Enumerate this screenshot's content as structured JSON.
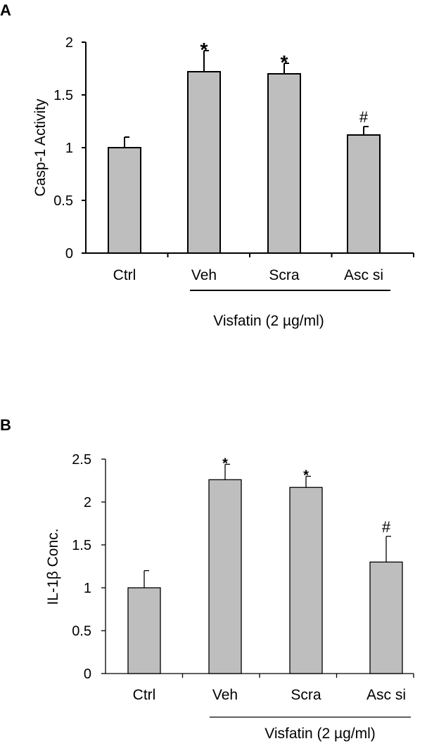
{
  "chart_data": [
    {
      "type": "bar",
      "panel_label": "A",
      "categories": [
        "Ctrl",
        "Veh",
        "Scra",
        "Asc si"
      ],
      "values": [
        1.0,
        1.72,
        1.7,
        1.12
      ],
      "errors": [
        0.1,
        0.2,
        0.1,
        0.08
      ],
      "annotations": [
        "",
        "*",
        "*",
        "#"
      ],
      "ylabel": "Casp-1 Activity",
      "xlabel": "",
      "ylim": [
        0,
        2
      ],
      "yticks": [
        0,
        0.5,
        1,
        1.5,
        2
      ],
      "ytick_labels": [
        "0",
        "0.5",
        "1",
        "1.5",
        "2"
      ],
      "group_label": "Visfatin (2 µg/ml)",
      "bar_color": "#bebebe",
      "grid": false
    },
    {
      "type": "bar",
      "panel_label": "B",
      "categories": [
        "Ctrl",
        "Veh",
        "Scra",
        "Asc si"
      ],
      "values": [
        1.0,
        2.26,
        2.17,
        1.3
      ],
      "errors": [
        0.2,
        0.18,
        0.13,
        0.3
      ],
      "annotations": [
        "",
        "*",
        "*",
        "#"
      ],
      "ylabel": "IL-1β Conc.",
      "xlabel": "",
      "ylim": [
        0,
        2.5
      ],
      "yticks": [
        0,
        0.5,
        1,
        1.5,
        2,
        2.5
      ],
      "ytick_labels": [
        "0",
        "0.5",
        "1",
        "1.5",
        "2",
        "2.5"
      ],
      "group_label": "Visfatin (2 µg/ml)",
      "bar_color": "#bebebe",
      "grid": false
    }
  ]
}
